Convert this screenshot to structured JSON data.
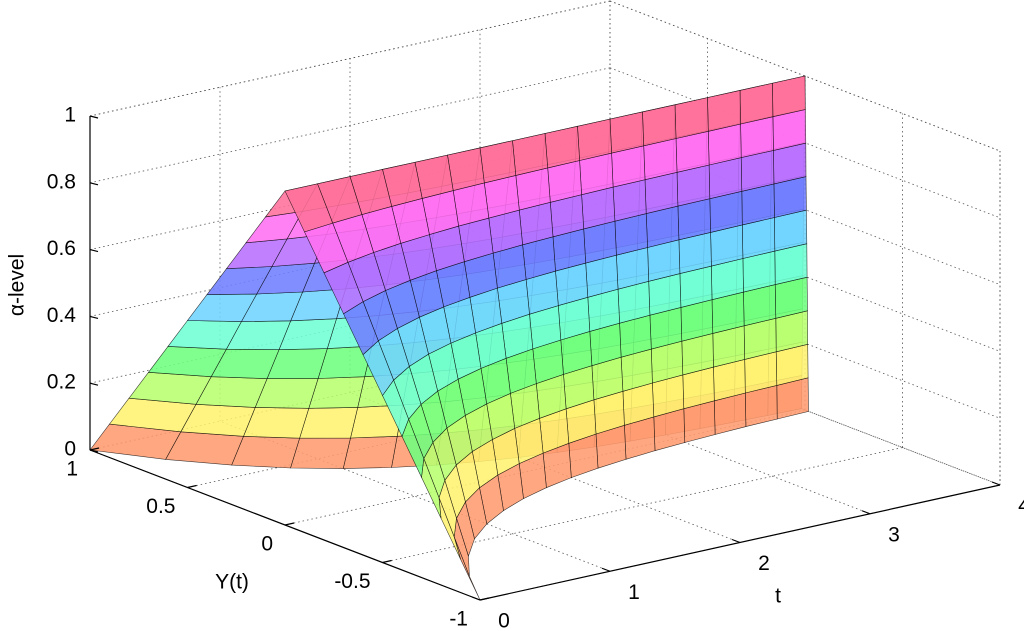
{
  "chart_data": {
    "type": "surface",
    "xlabel": "t",
    "ylabel": "Y(t)",
    "zlabel": "α-level",
    "xlim": [
      0,
      4
    ],
    "ylim": [
      -1,
      1
    ],
    "zlim": [
      0,
      1
    ],
    "xticks": [
      0,
      1,
      2,
      3,
      4
    ],
    "yticks": [
      -1,
      -0.5,
      0,
      0.5,
      1
    ],
    "zticks": [
      0,
      0.2,
      0.4,
      0.6,
      0.8,
      1
    ],
    "grid": true,
    "colormap": "hsv",
    "x": [
      0,
      0.25,
      0.5,
      0.75,
      1,
      1.25,
      1.5,
      1.75,
      2,
      2.25,
      2.5,
      2.75,
      3,
      3.25,
      3.5,
      3.75,
      4
    ],
    "z": [
      0,
      0.1,
      0.2,
      0.3,
      0.4,
      0.5,
      0.6,
      0.7,
      0.8,
      0.9,
      1
    ],
    "series": [
      {
        "values": [
          [
            1,
            0.779,
            0.607,
            0.472,
            0.368,
            0.287,
            0.223,
            0.174,
            0.135,
            0.105,
            0.082,
            0.064,
            0.05,
            0.039,
            0.03,
            0.024,
            0.018
          ],
          [
            0.9,
            0.701,
            0.546,
            0.425,
            0.331,
            0.258,
            0.201,
            0.157,
            0.122,
            0.095,
            0.074,
            0.058,
            0.045,
            0.035,
            0.027,
            0.022,
            0.016
          ],
          [
            0.8,
            0.623,
            0.486,
            0.378,
            0.294,
            0.23,
            0.178,
            0.139,
            0.108,
            0.084,
            0.066,
            0.051,
            0.04,
            0.031,
            0.024,
            0.019,
            0.014
          ],
          [
            0.7,
            0.545,
            0.425,
            0.33,
            0.258,
            0.201,
            0.156,
            0.122,
            0.095,
            0.074,
            0.057,
            0.045,
            0.035,
            0.027,
            0.021,
            0.017,
            0.013
          ],
          [
            0.6,
            0.467,
            0.364,
            0.283,
            0.221,
            0.172,
            0.134,
            0.104,
            0.081,
            0.063,
            0.049,
            0.038,
            0.03,
            0.023,
            0.018,
            0.014,
            0.011
          ],
          [
            0.5,
            0.39,
            0.304,
            0.236,
            0.184,
            0.144,
            0.112,
            0.087,
            0.068,
            0.053,
            0.041,
            0.032,
            0.025,
            0.02,
            0.015,
            0.012,
            0.009
          ],
          [
            0.4,
            0.312,
            0.243,
            0.189,
            0.147,
            0.115,
            0.089,
            0.07,
            0.054,
            0.042,
            0.033,
            0.026,
            0.02,
            0.016,
            0.012,
            0.01,
            0.007
          ],
          [
            0.3,
            0.234,
            0.182,
            0.142,
            0.11,
            0.086,
            0.067,
            0.052,
            0.041,
            0.032,
            0.025,
            0.019,
            0.015,
            0.012,
            0.009,
            0.007,
            0.005
          ],
          [
            0.2,
            0.156,
            0.121,
            0.094,
            0.074,
            0.057,
            0.045,
            0.035,
            0.027,
            0.021,
            0.016,
            0.013,
            0.01,
            0.008,
            0.006,
            0.005,
            0.004
          ],
          [
            0.1,
            0.078,
            0.061,
            0.047,
            0.037,
            0.029,
            0.022,
            0.017,
            0.014,
            0.011,
            0.008,
            0.006,
            0.005,
            0.004,
            0.003,
            0.002,
            0.002
          ],
          [
            0,
            0,
            0,
            0,
            0,
            0,
            0,
            0,
            0,
            0,
            0,
            0,
            0,
            0,
            0,
            0,
            0
          ]
        ]
      },
      {
        "values": [
          [
            -1,
            -0.779,
            -0.607,
            -0.472,
            -0.368,
            -0.287,
            -0.223,
            -0.174,
            -0.135,
            -0.105,
            -0.082,
            -0.064,
            -0.05,
            -0.039,
            -0.03,
            -0.024,
            -0.018
          ],
          [
            -0.9,
            -0.701,
            -0.546,
            -0.425,
            -0.331,
            -0.258,
            -0.201,
            -0.157,
            -0.122,
            -0.095,
            -0.074,
            -0.058,
            -0.045,
            -0.035,
            -0.027,
            -0.022,
            -0.016
          ],
          [
            -0.8,
            -0.623,
            -0.486,
            -0.378,
            -0.294,
            -0.23,
            -0.178,
            -0.139,
            -0.108,
            -0.084,
            -0.066,
            -0.051,
            -0.04,
            -0.031,
            -0.024,
            -0.019,
            -0.014
          ],
          [
            -0.7,
            -0.545,
            -0.425,
            -0.33,
            -0.258,
            -0.201,
            -0.156,
            -0.122,
            -0.095,
            -0.074,
            -0.057,
            -0.045,
            -0.035,
            -0.027,
            -0.021,
            -0.017,
            -0.013
          ],
          [
            -0.6,
            -0.467,
            -0.364,
            -0.283,
            -0.221,
            -0.172,
            -0.134,
            -0.104,
            -0.081,
            -0.063,
            -0.049,
            -0.038,
            -0.03,
            -0.023,
            -0.018,
            -0.014,
            -0.011
          ],
          [
            -0.5,
            -0.39,
            -0.304,
            -0.236,
            -0.184,
            -0.144,
            -0.112,
            -0.087,
            -0.068,
            -0.053,
            -0.041,
            -0.032,
            -0.025,
            -0.02,
            -0.015,
            -0.012,
            -0.009
          ],
          [
            -0.4,
            -0.312,
            -0.243,
            -0.189,
            -0.147,
            -0.115,
            -0.089,
            -0.07,
            -0.054,
            -0.042,
            -0.033,
            -0.026,
            -0.02,
            -0.016,
            -0.012,
            -0.01,
            -0.007
          ],
          [
            -0.3,
            -0.234,
            -0.182,
            -0.142,
            -0.11,
            -0.086,
            -0.067,
            -0.052,
            -0.041,
            -0.032,
            -0.025,
            -0.019,
            -0.015,
            -0.012,
            -0.009,
            -0.007,
            -0.005
          ],
          [
            -0.2,
            -0.156,
            -0.121,
            -0.094,
            -0.074,
            -0.057,
            -0.045,
            -0.035,
            -0.027,
            -0.021,
            -0.016,
            -0.013,
            -0.01,
            -0.008,
            -0.006,
            -0.005,
            -0.004
          ],
          [
            -0.1,
            -0.078,
            -0.061,
            -0.047,
            -0.037,
            -0.029,
            -0.022,
            -0.017,
            -0.014,
            -0.011,
            -0.008,
            -0.006,
            -0.005,
            -0.004,
            -0.003,
            -0.002,
            -0.002
          ],
          [
            0,
            0,
            0,
            0,
            0,
            0,
            0,
            0,
            0,
            0,
            0,
            0,
            0,
            0,
            0,
            0,
            0
          ]
        ]
      }
    ]
  }
}
